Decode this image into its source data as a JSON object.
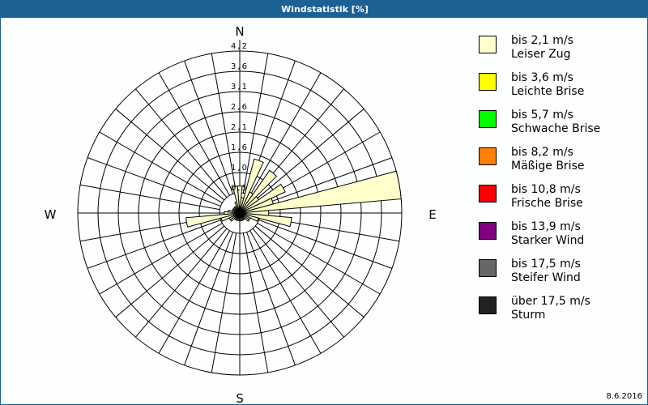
{
  "window": {
    "title": "Windstatistik [%]",
    "date": "8.6.2016"
  },
  "chart_data": {
    "type": "polar-bar",
    "title": "Windstatistik [%]",
    "directions": {
      "north": "N",
      "east": "E",
      "south": "S",
      "west": "W"
    },
    "ring_labels": [
      "0,5",
      "1,0",
      "1,6",
      "2,1",
      "2,6",
      "3,1",
      "3,6",
      "4,2"
    ],
    "rmax": 4.2,
    "sector_width_deg": 10,
    "series": [
      {
        "name": "bis 2,1 m/s",
        "color": "#ffffcc",
        "angles": [
          0,
          10,
          20,
          30,
          40,
          50,
          60,
          70,
          80,
          90,
          100,
          110,
          120,
          130,
          140,
          150,
          160,
          170,
          180,
          190,
          200,
          210,
          220,
          230,
          240,
          250,
          260,
          270,
          280,
          290,
          300,
          310,
          320,
          330,
          340,
          350
        ],
        "values": [
          0.7,
          0.4,
          1.45,
          0.6,
          1.35,
          0.6,
          1.3,
          0.9,
          4.2,
          0.75,
          1.35,
          0.5,
          0.3,
          0.3,
          0.2,
          0.2,
          0.2,
          0.2,
          0.2,
          0.2,
          0.2,
          0.2,
          0.2,
          0.3,
          0.3,
          0.5,
          1.4,
          0.4,
          0.3,
          0.2,
          0.2,
          0.2,
          0.2,
          0.2,
          0.3,
          0.7
        ]
      }
    ]
  },
  "legend": [
    {
      "label": "bis 2,1 m/s",
      "name": "Leiser Zug",
      "color": "#ffffcc"
    },
    {
      "label": "bis 3,6 m/s",
      "name": "Leichte Brise",
      "color": "#ffff00"
    },
    {
      "label": "bis 5,7 m/s",
      "name": "Schwache Brise",
      "color": "#00ff00"
    },
    {
      "label": "bis 8,2 m/s",
      "name": "Mäßige Brise",
      "color": "#ff8000"
    },
    {
      "label": "bis 10,8 m/s",
      "name": "Frische Brise",
      "color": "#ff0000"
    },
    {
      "label": "bis 13,9 m/s",
      "name": "Starker Wind",
      "color": "#800080"
    },
    {
      "label": "bis 17,5 m/s",
      "name": "Steifer Wind",
      "color": "#666666"
    },
    {
      "label": "über 17,5 m/s",
      "name": "Sturm",
      "color": "#222222"
    }
  ]
}
